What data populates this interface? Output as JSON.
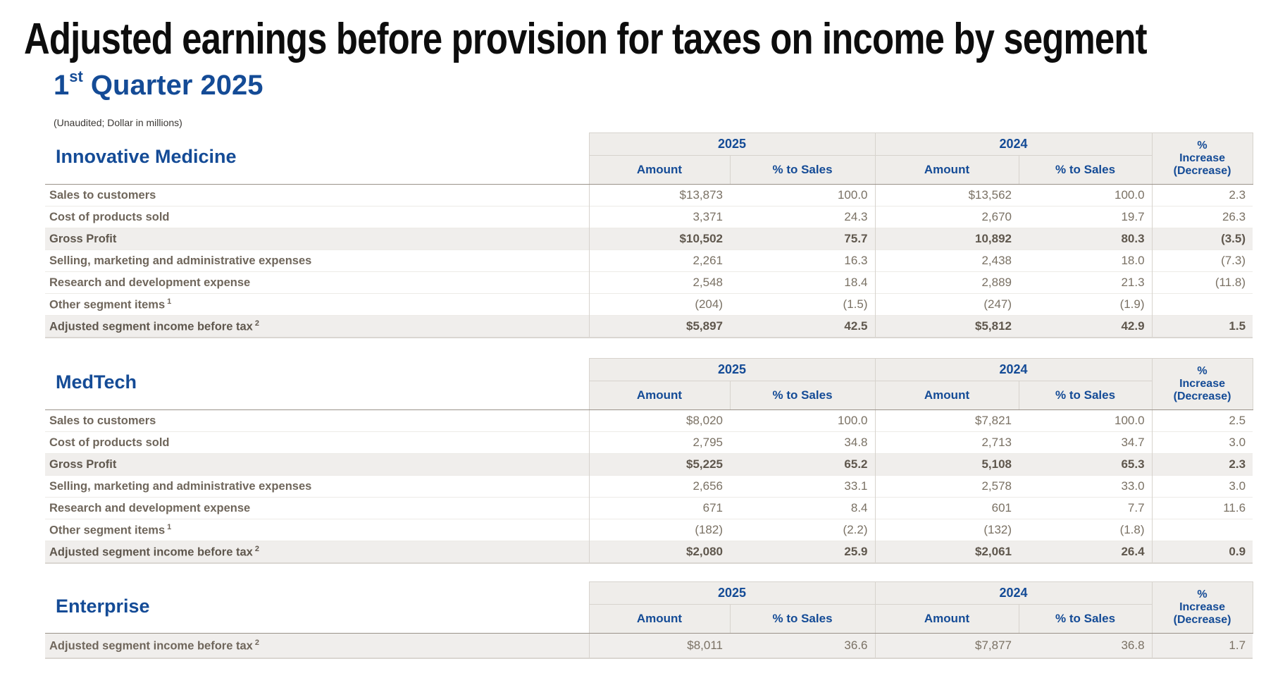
{
  "title": "Adjusted earnings before provision for taxes on income by segment",
  "subtitle": {
    "prefix": "1",
    "sup": "st",
    "rest": " Quarter 2025"
  },
  "note": "(Unaudited; Dollar in millions)",
  "colors": {
    "accent_blue": "#144b96",
    "label_text": "#6f665b",
    "value_text": "#7a7164",
    "header_bg": "#efedea",
    "stripe_bg": "#f0eeec"
  },
  "table_header": {
    "year_left": "2025",
    "year_right": "2024",
    "amount": "Amount",
    "pct_sales": "% to Sales",
    "increase_lines": [
      "%",
      "Increase",
      "(Decrease)"
    ]
  },
  "tables": [
    {
      "heading": "Innovative Medicine",
      "rows": [
        {
          "label": "Sales to customers",
          "sup": "",
          "bold": false,
          "striped": false,
          "values": [
            "$13,873",
            "100.0",
            "$13,562",
            "100.0",
            "2.3"
          ]
        },
        {
          "label": "Cost of products sold",
          "sup": "",
          "bold": false,
          "striped": false,
          "values": [
            "3,371",
            "24.3",
            "2,670",
            "19.7",
            "26.3"
          ]
        },
        {
          "label": "Gross Profit",
          "sup": "",
          "bold": true,
          "striped": true,
          "values": [
            "$10,502",
            "75.7",
            "10,892",
            "80.3",
            "(3.5)"
          ]
        },
        {
          "label": "Selling, marketing and administrative expenses",
          "sup": "",
          "bold": false,
          "striped": false,
          "values": [
            "2,261",
            "16.3",
            "2,438",
            "18.0",
            "(7.3)"
          ]
        },
        {
          "label": "Research and development expense",
          "sup": "",
          "bold": false,
          "striped": false,
          "values": [
            "2,548",
            "18.4",
            "2,889",
            "21.3",
            "(11.8)"
          ]
        },
        {
          "label": "Other segment items",
          "sup": "1",
          "bold": false,
          "striped": false,
          "values": [
            "(204)",
            "(1.5)",
            "(247)",
            "(1.9)",
            ""
          ]
        },
        {
          "label": "Adjusted segment income before tax",
          "sup": "2",
          "bold": true,
          "striped": true,
          "values": [
            "$5,897",
            "42.5",
            "$5,812",
            "42.9",
            "1.5"
          ]
        }
      ]
    },
    {
      "heading": "MedTech",
      "rows": [
        {
          "label": "Sales to customers",
          "sup": "",
          "bold": false,
          "striped": false,
          "values": [
            "$8,020",
            "100.0",
            "$7,821",
            "100.0",
            "2.5"
          ]
        },
        {
          "label": "Cost of products sold",
          "sup": "",
          "bold": false,
          "striped": false,
          "values": [
            "2,795",
            "34.8",
            "2,713",
            "34.7",
            "3.0"
          ]
        },
        {
          "label": "Gross Profit",
          "sup": "",
          "bold": true,
          "striped": true,
          "values": [
            "$5,225",
            "65.2",
            "5,108",
            "65.3",
            "2.3"
          ]
        },
        {
          "label": "Selling, marketing and administrative expenses",
          "sup": "",
          "bold": false,
          "striped": false,
          "values": [
            "2,656",
            "33.1",
            "2,578",
            "33.0",
            "3.0"
          ]
        },
        {
          "label": "Research and development expense",
          "sup": "",
          "bold": false,
          "striped": false,
          "values": [
            "671",
            "8.4",
            "601",
            "7.7",
            "11.6"
          ]
        },
        {
          "label": "Other segment items",
          "sup": "1",
          "bold": false,
          "striped": false,
          "values": [
            "(182)",
            "(2.2)",
            "(132)",
            "(1.8)",
            ""
          ]
        },
        {
          "label": "Adjusted segment income before tax",
          "sup": "2",
          "bold": true,
          "striped": true,
          "values": [
            "$2,080",
            "25.9",
            "$2,061",
            "26.4",
            "0.9"
          ]
        }
      ]
    },
    {
      "heading": "Enterprise",
      "rows": [
        {
          "label": "Adjusted segment income before tax",
          "sup": "2",
          "bold": false,
          "striped": true,
          "values": [
            "$8,011",
            "36.6",
            "$7,877",
            "36.8",
            "1.7"
          ]
        }
      ]
    }
  ]
}
